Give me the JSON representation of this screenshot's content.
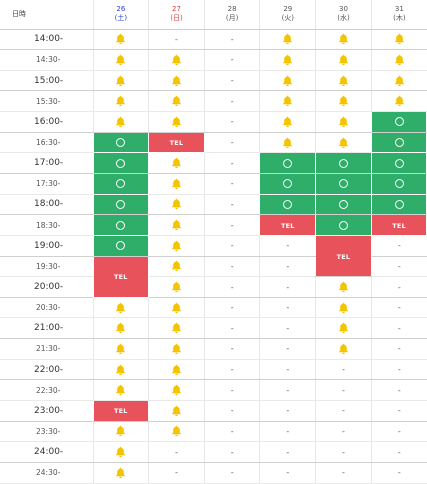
{
  "header": {
    "time_label": "日時",
    "days": [
      {
        "date": "26",
        "dow": "(土)",
        "kind": "sat"
      },
      {
        "date": "27",
        "dow": "(日)",
        "kind": "sun"
      },
      {
        "date": "28",
        "dow": "(月)",
        "kind": "wk"
      },
      {
        "date": "29",
        "dow": "(火)",
        "kind": "wk"
      },
      {
        "date": "30",
        "dow": "(水)",
        "kind": "wk"
      },
      {
        "date": "31",
        "dow": "(木)",
        "kind": "wk"
      }
    ]
  },
  "legend": {
    "tel": "TEL",
    "dash": "-",
    "ok": "available-circle",
    "bell": "bell-icon"
  },
  "colors": {
    "ok": "#2fae6a",
    "tel": "#e8525a",
    "bell": "#f5c400",
    "saturday": "#2a3cd0",
    "sunday": "#e23c3c"
  },
  "rows": [
    {
      "time": "14:00-",
      "cells": [
        "B",
        "-",
        "-",
        "B",
        "B",
        "B"
      ]
    },
    {
      "time": "14:30-",
      "cells": [
        "B",
        "B",
        "-",
        "B",
        "B",
        "B"
      ]
    },
    {
      "time": "15:00-",
      "cells": [
        "B",
        "B",
        "-",
        "B",
        "B",
        "B"
      ]
    },
    {
      "time": "15:30-",
      "cells": [
        "B",
        "B",
        "-",
        "B",
        "B",
        "B"
      ]
    },
    {
      "time": "16:00-",
      "cells": [
        "B",
        "B",
        "-",
        "B",
        "B",
        "O"
      ]
    },
    {
      "time": "16:30-",
      "cells": [
        "O",
        "T",
        "-",
        "B",
        "B",
        "O"
      ]
    },
    {
      "time": "17:00-",
      "cells": [
        "O",
        "B",
        "-",
        "O",
        "O",
        "O"
      ]
    },
    {
      "time": "17:30-",
      "cells": [
        "O",
        "B",
        "-",
        "O",
        "O",
        "O"
      ]
    },
    {
      "time": "18:00-",
      "cells": [
        "O",
        "B",
        "-",
        "O",
        "O",
        "O"
      ]
    },
    {
      "time": "18:30-",
      "cells": [
        "O",
        "B",
        "-",
        "T",
        "O",
        "T"
      ]
    },
    {
      "time": "19:00-",
      "cells": [
        "O",
        "B",
        "-",
        "-",
        "T2",
        "-"
      ]
    },
    {
      "time": "19:30-",
      "cells": [
        "T2",
        "B",
        "-",
        "-",
        "skip",
        "-"
      ]
    },
    {
      "time": "20:00-",
      "cells": [
        "skip",
        "B",
        "-",
        "-",
        "B",
        "-"
      ]
    },
    {
      "time": "20:30-",
      "cells": [
        "B",
        "B",
        "-",
        "-",
        "B",
        "-"
      ]
    },
    {
      "time": "21:00-",
      "cells": [
        "B",
        "B",
        "-",
        "-",
        "B",
        "-"
      ]
    },
    {
      "time": "21:30-",
      "cells": [
        "B",
        "B",
        "-",
        "-",
        "B",
        "-"
      ]
    },
    {
      "time": "22:00-",
      "cells": [
        "B",
        "B",
        "-",
        "-",
        "-",
        "-"
      ]
    },
    {
      "time": "22:30-",
      "cells": [
        "B",
        "B",
        "-",
        "-",
        "-",
        "-"
      ]
    },
    {
      "time": "23:00-",
      "cells": [
        "T",
        "B",
        "-",
        "-",
        "-",
        "-"
      ]
    },
    {
      "time": "23:30-",
      "cells": [
        "B",
        "B",
        "-",
        "-",
        "-",
        "-"
      ]
    },
    {
      "time": "24:00-",
      "cells": [
        "B",
        "-",
        "-",
        "-",
        "-",
        "-"
      ]
    },
    {
      "time": "24:30-",
      "cells": [
        "B",
        "-",
        "-",
        "-",
        "-",
        "-"
      ]
    }
  ]
}
